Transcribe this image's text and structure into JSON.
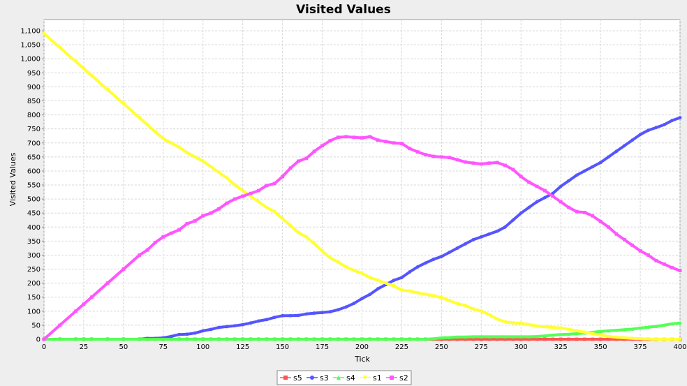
{
  "chart_data": {
    "type": "line",
    "title": "Visited Values",
    "xlabel": "Tick",
    "ylabel": "Visited Values",
    "xlim": [
      0,
      400
    ],
    "ylim": [
      0,
      1140
    ],
    "x_ticks": [
      0,
      25,
      50,
      75,
      100,
      125,
      150,
      175,
      200,
      225,
      250,
      275,
      300,
      325,
      350,
      375,
      400
    ],
    "y_ticks": [
      0,
      50,
      100,
      150,
      200,
      250,
      300,
      350,
      400,
      450,
      500,
      550,
      600,
      650,
      700,
      750,
      800,
      850,
      900,
      950,
      1000,
      1050,
      1100
    ],
    "y_tick_labels": [
      "0",
      "50",
      "100",
      "150",
      "200",
      "250",
      "300",
      "350",
      "400",
      "450",
      "500",
      "550",
      "600",
      "650",
      "700",
      "750",
      "800",
      "850",
      "900",
      "950",
      "1,000",
      "1,050",
      "1,100"
    ],
    "grid": true,
    "legend_position": "bottom",
    "x": [
      0,
      10,
      20,
      25,
      30,
      40,
      50,
      60,
      65,
      70,
      75,
      80,
      85,
      90,
      95,
      100,
      105,
      110,
      115,
      120,
      125,
      130,
      135,
      140,
      145,
      150,
      155,
      160,
      165,
      170,
      175,
      180,
      185,
      190,
      195,
      200,
      205,
      210,
      215,
      220,
      225,
      230,
      235,
      240,
      245,
      250,
      255,
      260,
      265,
      270,
      275,
      280,
      285,
      290,
      295,
      300,
      305,
      310,
      315,
      320,
      325,
      330,
      335,
      340,
      345,
      350,
      355,
      360,
      365,
      370,
      375,
      380,
      385,
      390,
      395,
      400
    ],
    "series": [
      {
        "name": "s5",
        "color": "#ff5555",
        "marker": "square",
        "values": [
          0,
          0,
          0,
          0,
          0,
          0,
          0,
          0,
          0,
          0,
          0,
          0,
          0,
          0,
          0,
          0,
          0,
          0,
          0,
          0,
          0,
          0,
          0,
          0,
          0,
          0,
          0,
          0,
          0,
          0,
          0,
          0,
          0,
          0,
          0,
          0,
          0,
          0,
          0,
          0,
          0,
          0,
          0,
          0,
          0,
          0,
          0,
          0,
          0,
          0,
          0,
          0,
          0,
          0,
          0,
          0,
          0,
          0,
          0,
          0,
          0,
          0,
          0,
          0,
          0,
          0,
          0,
          0,
          0,
          0,
          0,
          0,
          0,
          0,
          0,
          0
        ]
      },
      {
        "name": "s3",
        "color": "#5555ff",
        "marker": "circle",
        "values": [
          0,
          0,
          0,
          0,
          0,
          0,
          0,
          0,
          3,
          3,
          5,
          10,
          17,
          18,
          22,
          30,
          35,
          42,
          45,
          48,
          52,
          58,
          65,
          70,
          78,
          84,
          84,
          85,
          90,
          93,
          95,
          98,
          105,
          115,
          128,
          145,
          160,
          180,
          195,
          210,
          220,
          240,
          258,
          272,
          285,
          295,
          310,
          325,
          340,
          355,
          365,
          375,
          385,
          400,
          425,
          450,
          470,
          490,
          505,
          520,
          545,
          565,
          585,
          600,
          615,
          630,
          650,
          670,
          690,
          710,
          730,
          745,
          755,
          765,
          780,
          790
        ]
      },
      {
        "name": "s4",
        "color": "#55ff55",
        "marker": "triangle",
        "values": [
          0,
          0,
          0,
          0,
          0,
          0,
          0,
          0,
          0,
          0,
          0,
          0,
          0,
          0,
          0,
          0,
          0,
          0,
          0,
          0,
          0,
          0,
          0,
          0,
          0,
          0,
          0,
          0,
          0,
          0,
          0,
          0,
          0,
          0,
          0,
          0,
          0,
          0,
          0,
          0,
          0,
          0,
          0,
          0,
          2,
          5,
          6,
          8,
          8,
          9,
          9,
          9,
          9,
          9,
          9,
          9,
          9,
          10,
          12,
          15,
          17,
          18,
          20,
          22,
          25,
          28,
          30,
          32,
          34,
          36,
          40,
          43,
          46,
          50,
          55,
          58
        ]
      },
      {
        "name": "s1",
        "color": "#ffff33",
        "marker": "triangle-down",
        "values": [
          1090,
          1040,
          990,
          965,
          940,
          890,
          840,
          790,
          765,
          740,
          715,
          700,
          685,
          665,
          650,
          635,
          615,
          595,
          575,
          550,
          530,
          510,
          490,
          470,
          455,
          430,
          405,
          380,
          365,
          340,
          315,
          290,
          275,
          258,
          245,
          235,
          220,
          210,
          200,
          190,
          175,
          172,
          165,
          160,
          155,
          148,
          138,
          127,
          120,
          108,
          100,
          88,
          72,
          62,
          58,
          57,
          52,
          47,
          44,
          42,
          40,
          35,
          30,
          25,
          20,
          15,
          10,
          7,
          5,
          3,
          2,
          1,
          0,
          0,
          0,
          0
        ]
      },
      {
        "name": "s2",
        "color": "#ff55ff",
        "marker": "square",
        "values": [
          0,
          50,
          100,
          125,
          150,
          200,
          250,
          300,
          318,
          345,
          365,
          378,
          390,
          412,
          422,
          440,
          450,
          465,
          485,
          500,
          510,
          520,
          530,
          548,
          555,
          580,
          610,
          635,
          645,
          670,
          690,
          708,
          720,
          722,
          720,
          718,
          722,
          710,
          705,
          700,
          698,
          680,
          668,
          658,
          652,
          650,
          648,
          640,
          632,
          628,
          625,
          628,
          630,
          620,
          605,
          580,
          560,
          545,
          530,
          510,
          490,
          470,
          455,
          452,
          440,
          420,
          400,
          375,
          355,
          335,
          315,
          300,
          280,
          268,
          255,
          245
        ]
      }
    ]
  }
}
